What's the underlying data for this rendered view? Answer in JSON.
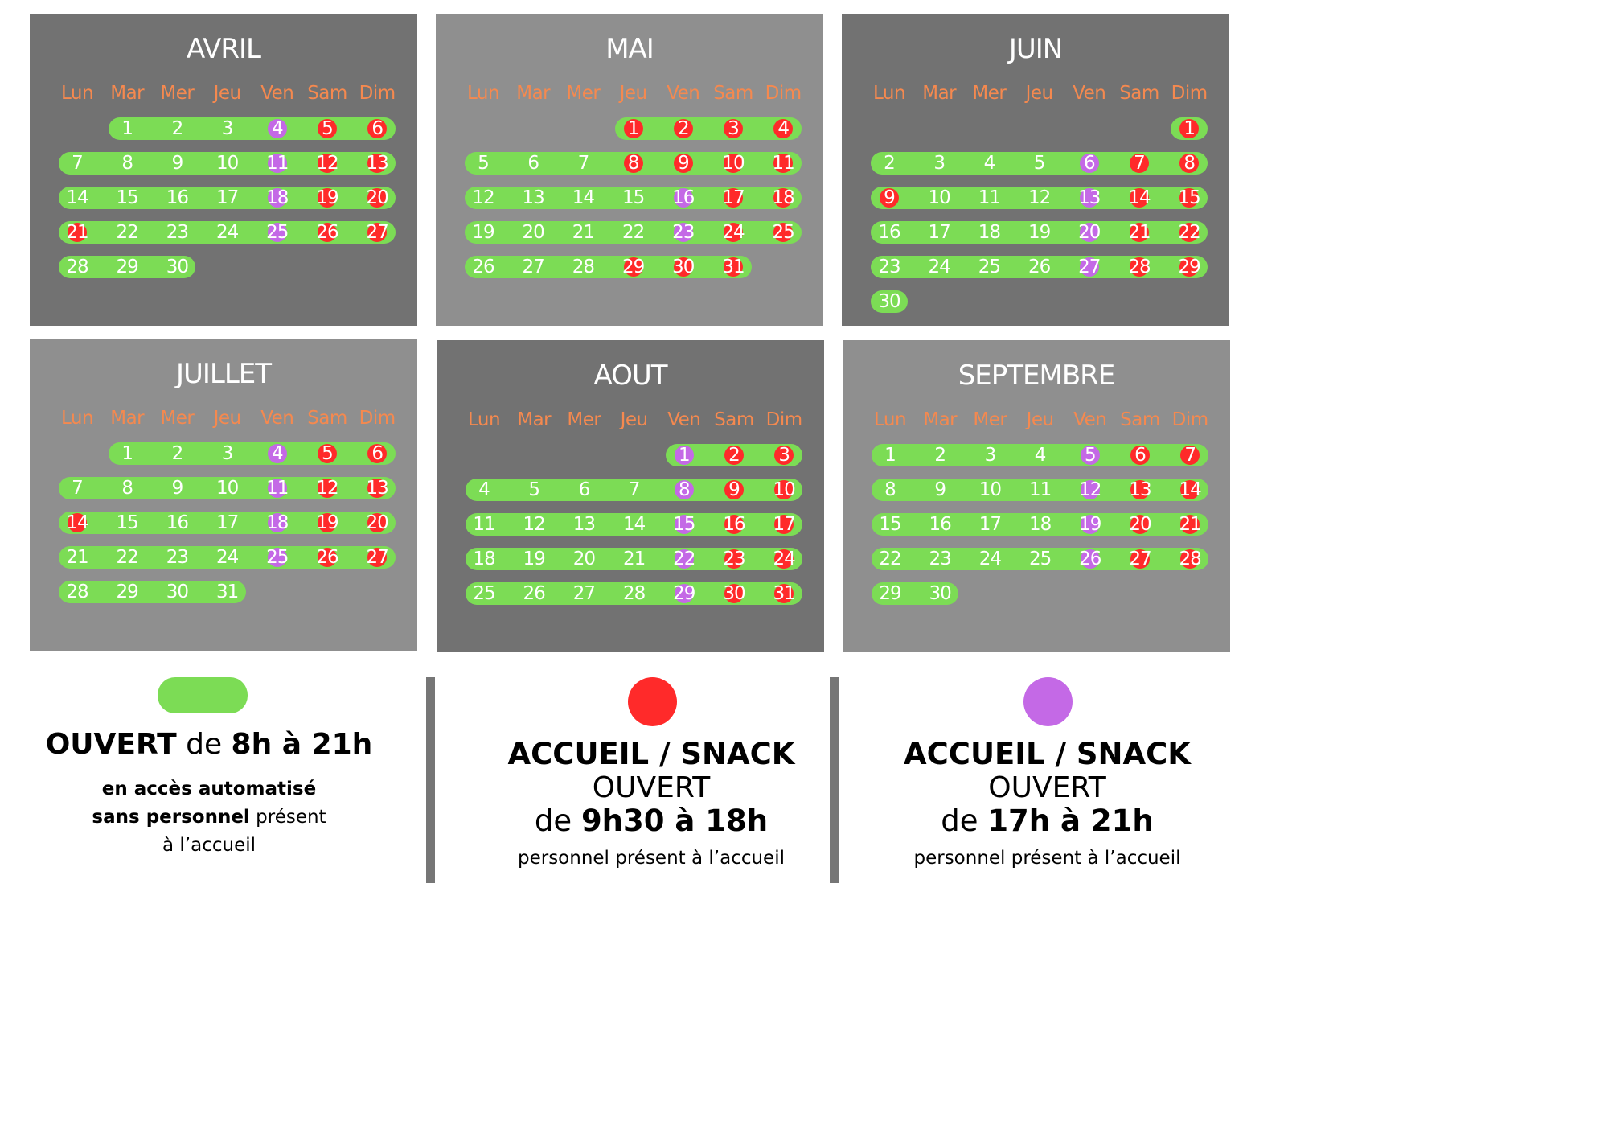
{
  "weekdays": [
    "Lun",
    "Mar",
    "Mer",
    "Jeu",
    "Ven",
    "Sam",
    "Dim"
  ],
  "colors": {
    "open": "#7cdc55",
    "accueil_day": "#ff2a2a",
    "accueil_evening": "#c469e6",
    "weekday_text": "#f5894f",
    "panel_dark": "#727272",
    "panel_light": "#8f8f8f"
  },
  "months": [
    {
      "name": "AVRIL",
      "start_weekday": 1,
      "days": 30,
      "red": [
        5,
        6,
        12,
        13,
        19,
        20,
        21,
        26,
        27
      ],
      "purple": [
        4,
        11,
        18,
        25
      ]
    },
    {
      "name": "MAI",
      "start_weekday": 3,
      "days": 31,
      "red": [
        1,
        2,
        3,
        4,
        8,
        9,
        10,
        11,
        17,
        18,
        24,
        25,
        29,
        30,
        31
      ],
      "purple": [
        16,
        23
      ]
    },
    {
      "name": "JUIN",
      "start_weekday": 6,
      "days": 30,
      "red": [
        1,
        7,
        8,
        9,
        14,
        15,
        21,
        22,
        28,
        29
      ],
      "purple": [
        6,
        13,
        20,
        27
      ]
    },
    {
      "name": "JUILLET",
      "start_weekday": 1,
      "days": 31,
      "red": [
        5,
        6,
        12,
        13,
        14,
        19,
        20,
        26,
        27
      ],
      "purple": [
        4,
        11,
        18,
        25
      ]
    },
    {
      "name": "AOUT",
      "start_weekday": 4,
      "days": 31,
      "red": [
        2,
        3,
        9,
        10,
        16,
        17,
        23,
        24,
        30,
        31
      ],
      "purple": [
        1,
        8,
        15,
        22,
        29
      ]
    },
    {
      "name": "SEPTEMBRE",
      "start_weekday": 0,
      "days": 30,
      "red": [
        6,
        7,
        13,
        14,
        20,
        21,
        27,
        28
      ],
      "purple": [
        5,
        12,
        19,
        26
      ]
    }
  ],
  "legend": {
    "open": {
      "title_bold": "OUVERT",
      "title_rest": "de",
      "title_hours": "8h à 21h",
      "line1": "en accès automatisé",
      "line2_bold": "sans personnel",
      "line2_rest": "présent",
      "line3": "à l’accueil"
    },
    "day": {
      "title": "ACCUEIL / SNACK",
      "open": "OUVERT",
      "de": "de",
      "hours": "9h30 à 18h",
      "note": "personnel présent à l’accueil"
    },
    "evening": {
      "title": "ACCUEIL / SNACK",
      "open": "OUVERT",
      "de": "de",
      "hours": "17h à 21h",
      "note": "personnel présent à l’accueil"
    }
  }
}
